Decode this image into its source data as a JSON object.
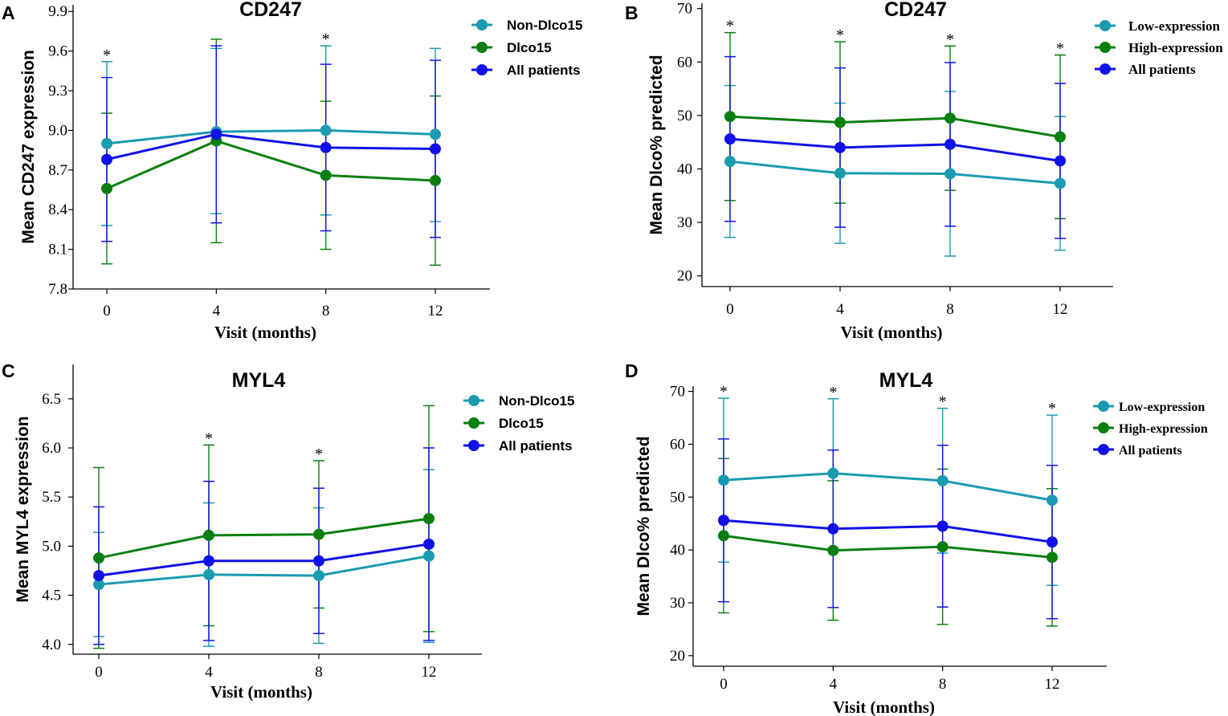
{
  "colors": {
    "teal": "#1a9bb0",
    "green": "#0a7f10",
    "blue": "#1010e8",
    "axis": "#000000"
  },
  "chart_data": [
    {
      "panel_label": "A",
      "type": "line",
      "title": "CD247",
      "xlabel": "Visit (months)",
      "ylabel": "Mean CD247 expression",
      "x": [
        0,
        4,
        8,
        12
      ],
      "xticks": [
        "0",
        "4",
        "8",
        "12"
      ],
      "ylim": [
        7.8,
        9.95
      ],
      "yticks": [
        "7.8",
        "8.1",
        "8.4",
        "8.7",
        "9.0",
        "9.3",
        "9.6",
        "9.9"
      ],
      "legend": [
        "Non-Dlco15",
        "Dlco15",
        "All patients"
      ],
      "legend_position": "top-right",
      "significance": [
        "*",
        "",
        "*",
        ""
      ],
      "series": [
        {
          "name": "Non-Dlco15",
          "color": "teal",
          "values": [
            8.9,
            8.99,
            9.0,
            8.97
          ],
          "upper": [
            9.52,
            9.62,
            9.64,
            9.62
          ],
          "lower": [
            8.28,
            8.37,
            8.36,
            8.31
          ]
        },
        {
          "name": "Dlco15",
          "color": "green",
          "values": [
            8.56,
            8.92,
            8.66,
            8.62
          ],
          "upper": [
            9.13,
            9.69,
            9.22,
            9.26
          ],
          "lower": [
            7.99,
            8.15,
            8.1,
            7.98
          ]
        },
        {
          "name": "All patients",
          "color": "blue",
          "values": [
            8.78,
            8.97,
            8.87,
            8.86
          ],
          "upper": [
            9.4,
            9.64,
            9.5,
            9.53
          ],
          "lower": [
            8.16,
            8.3,
            8.24,
            8.19
          ]
        }
      ]
    },
    {
      "panel_label": "B",
      "type": "line",
      "title": "CD247",
      "xlabel": "Visit (months)",
      "ylabel": "Mean Dlco% predicted",
      "x": [
        0,
        4,
        8,
        12
      ],
      "xticks": [
        "0",
        "4",
        "8",
        "12"
      ],
      "ylim": [
        18,
        71
      ],
      "yticks": [
        "20",
        "30",
        "40",
        "50",
        "60",
        "70"
      ],
      "legend": [
        "Low-expression",
        "High-expression",
        "All patients"
      ],
      "legend_position": "top-right",
      "significance": [
        "*",
        "*",
        "*",
        "*"
      ],
      "series": [
        {
          "name": "Low-expression",
          "color": "teal",
          "values": [
            41.4,
            39.2,
            39.1,
            37.3
          ],
          "upper": [
            55.6,
            52.3,
            54.5,
            49.8
          ],
          "lower": [
            27.2,
            26.1,
            23.7,
            24.8
          ]
        },
        {
          "name": "High-expression",
          "color": "green",
          "values": [
            49.8,
            48.7,
            49.5,
            46.0
          ],
          "upper": [
            65.5,
            63.8,
            63.0,
            61.3
          ],
          "lower": [
            34.1,
            33.6,
            36.0,
            30.7
          ]
        },
        {
          "name": "All patients",
          "color": "blue",
          "values": [
            45.6,
            44.0,
            44.6,
            41.5
          ],
          "upper": [
            61.0,
            58.9,
            59.9,
            56.0
          ],
          "lower": [
            30.2,
            29.1,
            29.3,
            27.0
          ]
        }
      ]
    },
    {
      "panel_label": "C",
      "type": "line",
      "title": "MYL4",
      "xlabel": "Visit (months)",
      "ylabel": "Mean MYL4 expression",
      "x": [
        0,
        4,
        8,
        12
      ],
      "xticks": [
        "0",
        "4",
        "8",
        "12"
      ],
      "ylim": [
        3.9,
        6.85
      ],
      "yticks": [
        "4.0",
        "4.5",
        "5.0",
        "5.5",
        "6.0",
        "6.5"
      ],
      "legend": [
        "Non-Dlco15",
        "Dlco15",
        "All patients"
      ],
      "legend_position": "top-right",
      "significance": [
        "",
        "*",
        "*",
        ""
      ],
      "series": [
        {
          "name": "Non-Dlco15",
          "color": "teal",
          "values": [
            4.61,
            4.71,
            4.7,
            4.9
          ],
          "upper": [
            5.14,
            5.44,
            5.39,
            5.78
          ],
          "lower": [
            4.08,
            3.98,
            4.01,
            4.02
          ]
        },
        {
          "name": "Dlco15",
          "color": "green",
          "values": [
            4.88,
            5.11,
            5.12,
            5.28
          ],
          "upper": [
            5.8,
            6.03,
            5.87,
            6.43
          ],
          "lower": [
            3.96,
            4.19,
            4.37,
            4.13
          ]
        },
        {
          "name": "All patients",
          "color": "blue",
          "values": [
            4.7,
            4.85,
            4.85,
            5.02
          ],
          "upper": [
            5.4,
            5.66,
            5.59,
            6.0
          ],
          "lower": [
            4.0,
            4.04,
            4.11,
            4.04
          ]
        }
      ]
    },
    {
      "panel_label": "D",
      "type": "line",
      "title": "MYL4",
      "xlabel": "Visit (months)",
      "ylabel": "Mean Dlco% predicted",
      "x": [
        0,
        4,
        8,
        12
      ],
      "xticks": [
        "0",
        "4",
        "8",
        "12"
      ],
      "ylim": [
        18,
        71
      ],
      "yticks": [
        "20",
        "30",
        "40",
        "50",
        "60",
        "70"
      ],
      "legend": [
        "Low-expression",
        "High-expression",
        "All patients"
      ],
      "legend_position": "top-right",
      "significance": [
        "*",
        "*",
        "*",
        "*"
      ],
      "series": [
        {
          "name": "Low-expression",
          "color": "teal",
          "values": [
            53.2,
            54.5,
            53.1,
            49.4
          ],
          "upper": [
            68.7,
            68.6,
            66.8,
            65.5
          ],
          "lower": [
            37.7,
            40.4,
            39.4,
            33.3
          ]
        },
        {
          "name": "High-expression",
          "color": "green",
          "values": [
            42.7,
            39.9,
            40.6,
            38.6
          ],
          "upper": [
            57.3,
            53.1,
            55.3,
            51.6
          ],
          "lower": [
            28.1,
            26.7,
            25.9,
            25.6
          ]
        },
        {
          "name": "All patients",
          "color": "blue",
          "values": [
            45.6,
            44.0,
            44.5,
            41.5
          ],
          "upper": [
            61.0,
            58.9,
            59.8,
            56.0
          ],
          "lower": [
            30.2,
            29.1,
            29.2,
            27.0
          ]
        }
      ]
    }
  ]
}
